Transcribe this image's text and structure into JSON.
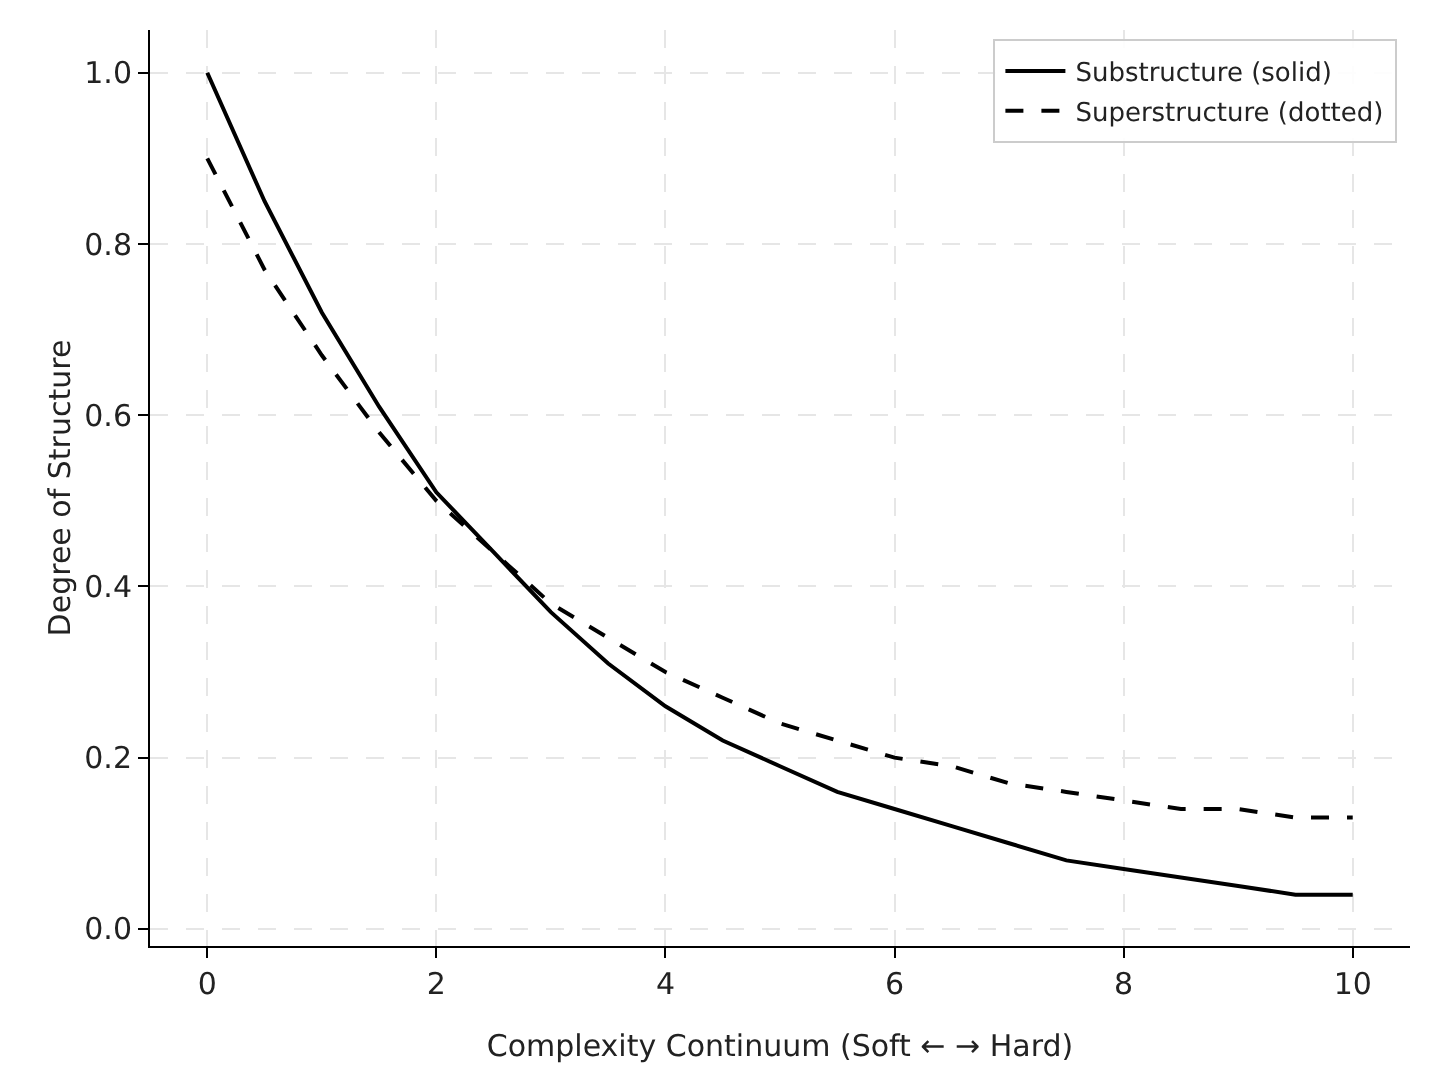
{
  "chart_data": {
    "type": "line",
    "xlabel": "Complexity Continuum (Soft ← → Hard)",
    "ylabel": "Degree of Structure",
    "x": [
      0,
      0.5,
      1,
      1.5,
      2,
      2.5,
      3,
      3.5,
      4,
      4.5,
      5,
      5.5,
      6,
      6.5,
      7,
      7.5,
      8,
      8.5,
      9,
      9.5,
      10
    ],
    "series": [
      {
        "name": "Substructure (solid)",
        "color": "#000000",
        "line_style": "solid",
        "values": [
          1.0,
          0.85,
          0.72,
          0.61,
          0.51,
          0.44,
          0.37,
          0.31,
          0.26,
          0.22,
          0.19,
          0.16,
          0.14,
          0.12,
          0.1,
          0.08,
          0.07,
          0.06,
          0.05,
          0.04,
          0.04
        ]
      },
      {
        "name": "Superstructure (dotted)",
        "color": "#000000",
        "line_style": "dashed",
        "values": [
          0.9,
          0.77,
          0.67,
          0.58,
          0.5,
          0.44,
          0.38,
          0.34,
          0.3,
          0.27,
          0.24,
          0.22,
          0.2,
          0.19,
          0.17,
          0.16,
          0.15,
          0.14,
          0.14,
          0.13,
          0.13
        ]
      }
    ],
    "xlim": [
      -0.5,
      10.5
    ],
    "xticks": [
      0,
      2,
      4,
      6,
      8,
      10
    ],
    "ylim": [
      -0.02,
      1.05
    ],
    "yticks": [
      {
        "value": 0,
        "label": "0.0"
      },
      {
        "value": 0.2,
        "label": "0.2"
      },
      {
        "value": 0.4,
        "label": "0.4"
      },
      {
        "value": 0.6,
        "label": "0.6"
      },
      {
        "value": 0.8,
        "label": "0.8"
      },
      {
        "value": 1,
        "label": "1.0"
      }
    ],
    "grid": true,
    "legend": "top right",
    "marker": "none"
  }
}
